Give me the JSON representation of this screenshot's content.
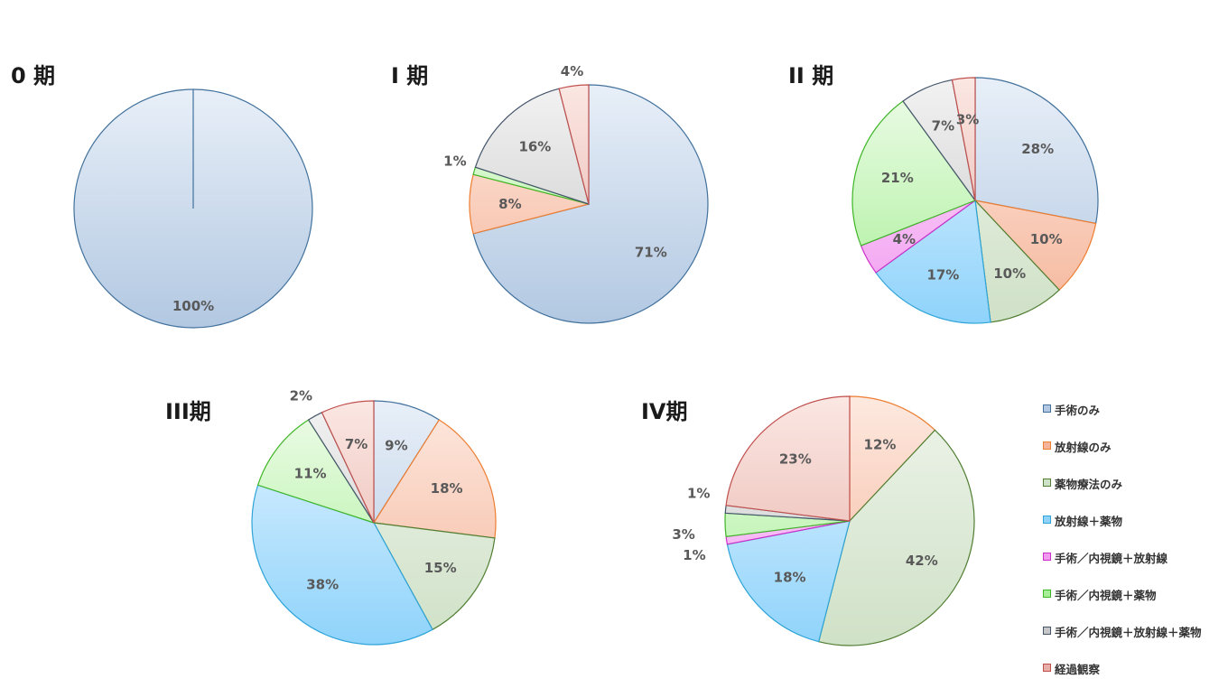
{
  "categories": [
    {
      "name": "手術のみ",
      "fill_top": "#e8eff8",
      "fill_bottom": "#b2c8e2",
      "stroke": "#41719c"
    },
    {
      "name": "放射線のみ",
      "fill_top": "#fde9e0",
      "fill_bottom": "#f5b59a",
      "stroke": "#ed7d31"
    },
    {
      "name": "薬物療法のみ",
      "fill_top": "#eef4ea",
      "fill_bottom": "#cfe1c7",
      "stroke": "#507e32"
    },
    {
      "name": "放射線＋薬物",
      "fill_top": "#e4f4ff",
      "fill_bottom": "#8fd3fb",
      "stroke": "#2ea4d9"
    },
    {
      "name": "手術／内視鏡＋放射線",
      "fill_top": "#fbe4fb",
      "fill_bottom": "#f29af0",
      "stroke": "#cc2fc8"
    },
    {
      "name": "手術／内視鏡＋薬物",
      "fill_top": "#effcea",
      "fill_bottom": "#a7ef96",
      "stroke": "#3fb527"
    },
    {
      "name": "手術／内視鏡＋放射線＋薬物",
      "fill_top": "#f2f2f2",
      "fill_bottom": "#c7c7c7",
      "stroke": "#44546a"
    },
    {
      "name": "経過観察",
      "fill_top": "#fbe7e3",
      "fill_bottom": "#e6aea6",
      "stroke": "#c0504d"
    }
  ],
  "chart_data": [
    {
      "type": "pie",
      "title": "0 期",
      "values": [
        100,
        0,
        0,
        0,
        0,
        0,
        0,
        0
      ],
      "labels": [
        "100%",
        "",
        "",
        "",
        "",
        "",
        "",
        ""
      ]
    },
    {
      "type": "pie",
      "title": "I 期",
      "values": [
        71,
        8,
        0,
        0,
        0,
        1,
        16,
        4
      ],
      "labels": [
        "71%",
        "8%",
        "",
        "",
        "",
        "1%",
        "16%",
        "4%"
      ]
    },
    {
      "type": "pie",
      "title": "II 期",
      "values": [
        28,
        10,
        10,
        17,
        4,
        21,
        7,
        3
      ],
      "labels": [
        "28%",
        "10%",
        "10%",
        "17%",
        "4%",
        "21%",
        "7%",
        "3%"
      ]
    },
    {
      "type": "pie",
      "title": "III期",
      "values": [
        9,
        18,
        15,
        38,
        0,
        11,
        2,
        7
      ],
      "labels": [
        "9%",
        "18%",
        "15%",
        "38%",
        "",
        "11%",
        "2%",
        "7%"
      ]
    },
    {
      "type": "pie",
      "title": "IV期",
      "values": [
        0,
        12,
        42,
        18,
        1,
        3,
        1,
        23
      ],
      "labels": [
        "",
        "12%",
        "42%",
        "18%",
        "1%",
        "3%",
        "1%",
        "23%"
      ]
    }
  ]
}
